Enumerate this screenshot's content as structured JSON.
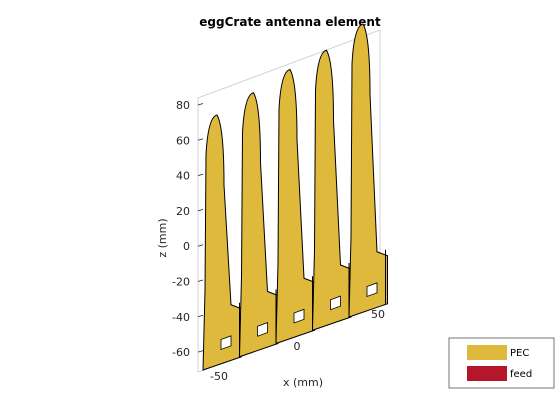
{
  "chart_data": {
    "type": "3d-surface",
    "title": "eggCrate antenna element",
    "xlabel": "x (mm)",
    "ylabel": "",
    "zlabel": "z (mm)",
    "x_ticks": [
      "-50",
      "0",
      "50"
    ],
    "z_ticks": [
      "80",
      "60",
      "40",
      "20",
      "0",
      "-20",
      "-40",
      "-60"
    ],
    "legend": [
      {
        "label": "PEC",
        "color": "#dfb93c"
      },
      {
        "label": "feed",
        "color": "#b5162c"
      }
    ],
    "colors": {
      "metal": "#dfb93c",
      "outline": "#000000",
      "box": "#bdbdbd"
    }
  }
}
